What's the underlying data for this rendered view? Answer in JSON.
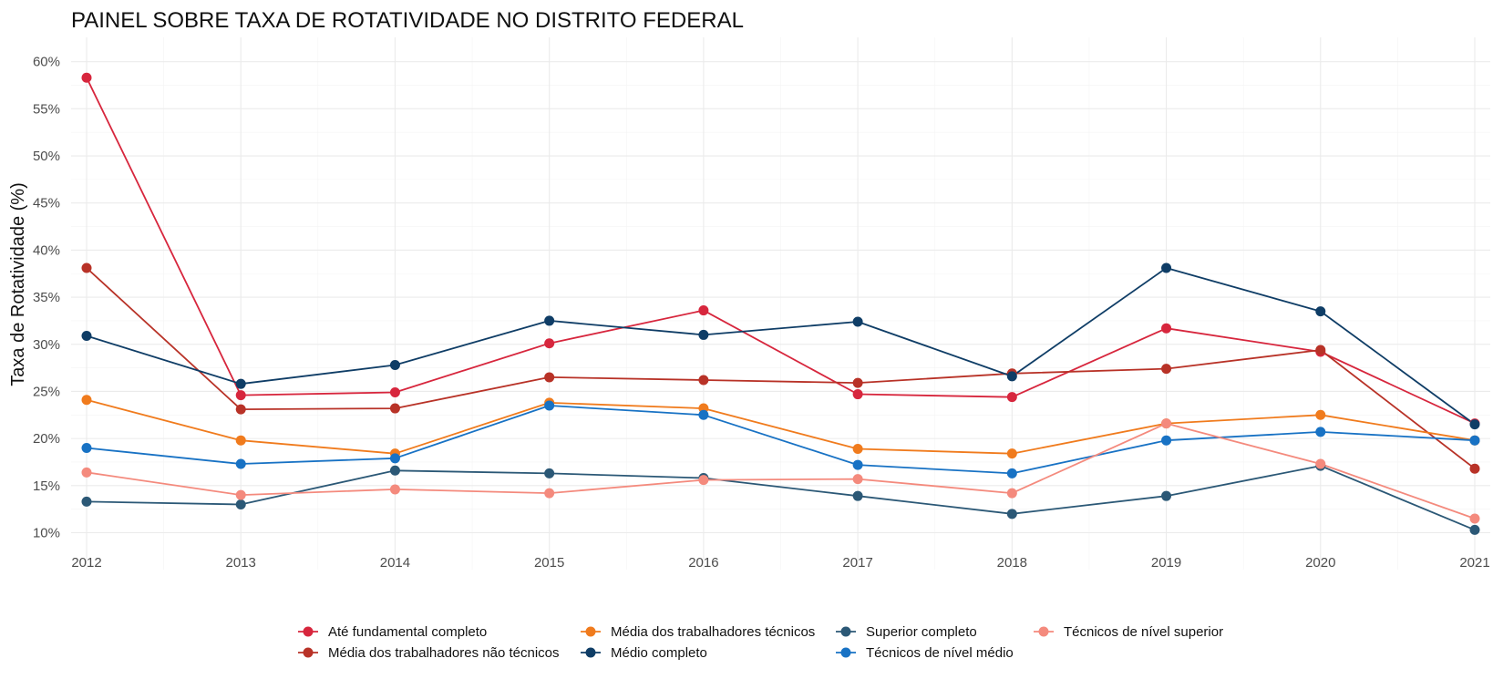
{
  "chart_data": {
    "type": "line",
    "title": "PAINEL SOBRE TAXA DE ROTATIVIDADE NO DISTRITO FEDERAL",
    "xlabel": "",
    "ylabel": "Taxa de Rotatividade (%)",
    "x": [
      2012,
      2013,
      2014,
      2015,
      2016,
      2017,
      2018,
      2019,
      2020,
      2021
    ],
    "x_tick_labels": [
      "2012",
      "2013",
      "2014",
      "2015",
      "2016",
      "2017",
      "2018",
      "2019",
      "2020",
      "2021"
    ],
    "ylim": [
      8.5,
      62
    ],
    "y_ticks": [
      10,
      15,
      20,
      25,
      30,
      35,
      40,
      45,
      50,
      55,
      60
    ],
    "y_tick_labels": [
      "10%",
      "15%",
      "20%",
      "25%",
      "30%",
      "35%",
      "40%",
      "45%",
      "50%",
      "55%",
      "60%"
    ],
    "grid": true,
    "legend_position": "bottom",
    "series": [
      {
        "name": "Até fundamental completo",
        "color": "#d7263d",
        "values": [
          58.3,
          24.6,
          24.9,
          30.1,
          33.6,
          24.7,
          24.4,
          31.7,
          29.2,
          21.6
        ]
      },
      {
        "name": "Média dos trabalhadores não técnicos",
        "color": "#b83227",
        "values": [
          38.1,
          23.1,
          23.2,
          26.5,
          26.2,
          25.9,
          26.9,
          27.4,
          29.4,
          16.8
        ]
      },
      {
        "name": "Média dos trabalhadores técnicos",
        "color": "#f07b1d",
        "values": [
          24.1,
          19.8,
          18.4,
          23.8,
          23.2,
          18.9,
          18.4,
          21.6,
          22.5,
          19.8
        ]
      },
      {
        "name": "Médio completo",
        "color": "#0f3d66",
        "values": [
          30.9,
          25.8,
          27.8,
          32.5,
          31.0,
          32.4,
          26.6,
          38.1,
          33.5,
          21.5
        ]
      },
      {
        "name": "Superior completo",
        "color": "#2b5876",
        "values": [
          13.3,
          13.0,
          16.6,
          16.3,
          15.8,
          13.9,
          12.0,
          13.9,
          17.1,
          10.3
        ]
      },
      {
        "name": "Técnicos de nível médio",
        "color": "#1872c4",
        "values": [
          19.0,
          17.3,
          17.9,
          23.5,
          22.5,
          17.2,
          16.3,
          19.8,
          20.7,
          19.8
        ]
      },
      {
        "name": "Técnicos de nível superior",
        "color": "#f48a7d",
        "values": [
          16.4,
          14.0,
          14.6,
          14.2,
          15.6,
          15.7,
          14.2,
          21.6,
          17.3,
          11.5
        ]
      }
    ],
    "legend_layout": [
      [
        "Até fundamental completo",
        "Média dos trabalhadores técnicos",
        "Superior completo",
        "Técnicos de nível superior"
      ],
      [
        "Média dos trabalhadores não técnicos",
        "Médio completo",
        "Técnicos de nível médio"
      ]
    ]
  }
}
